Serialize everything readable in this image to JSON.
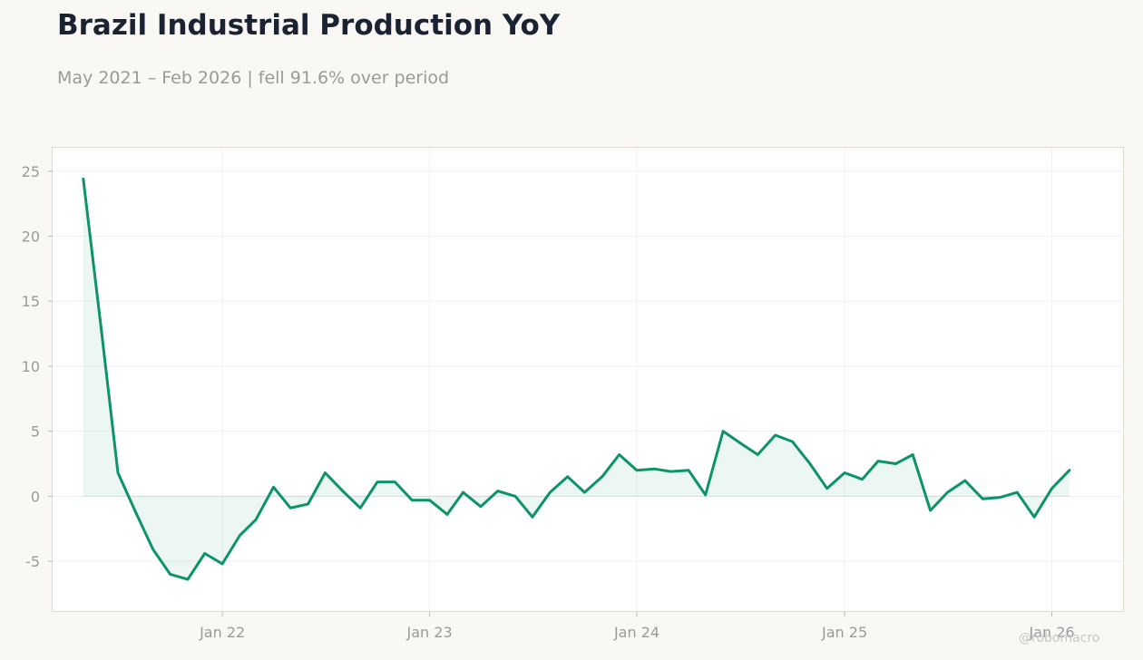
{
  "title": "Brazil Industrial Production YoY",
  "subtitle": "May 2021 – Feb 2026 | fell 91.6% over period",
  "watermark": "@robomacro",
  "colors": {
    "line": "#0d936a",
    "fill": "#0d936a",
    "background": "#f9f8f5",
    "plot_background": "#ffffff",
    "grid": "#eeeeee",
    "title": "#1b2333",
    "muted": "#9a9a9a"
  },
  "chart_data": {
    "type": "area",
    "title": "Brazil Industrial Production YoY",
    "subtitle": "May 2021 – Feb 2026 | fell 91.6% over period",
    "xlabel": "",
    "ylabel": "",
    "ylim": [
      -8.9,
      26.8
    ],
    "xlim": [
      "2021-03-08",
      "2026-05-08"
    ],
    "grid": true,
    "legend": "none",
    "y_ticks": [
      25,
      20,
      15,
      10,
      5,
      0,
      -5
    ],
    "y_tick_labels": [
      "25",
      "20",
      "15",
      "10",
      "5",
      "0",
      "-5"
    ],
    "x_ticks": [
      "2022-01-01",
      "2023-01-01",
      "2024-01-01",
      "2025-01-01",
      "2026-01-01"
    ],
    "x_tick_labels": [
      "Jan 22",
      "Jan 23",
      "Jan 24",
      "Jan 25",
      "Jan 26"
    ],
    "series": [
      {
        "x": [
          "2021-05",
          "2021-06",
          "2021-07",
          "2021-08",
          "2021-09",
          "2021-10",
          "2021-11",
          "2021-12",
          "2022-01",
          "2022-02",
          "2022-03",
          "2022-04",
          "2022-05",
          "2022-06",
          "2022-07",
          "2022-08",
          "2022-09",
          "2022-10",
          "2022-11",
          "2022-12",
          "2023-01",
          "2023-02",
          "2023-03",
          "2023-04",
          "2023-05",
          "2023-06",
          "2023-07",
          "2023-08",
          "2023-09",
          "2023-10",
          "2023-11",
          "2023-12",
          "2024-01",
          "2024-02",
          "2024-03",
          "2024-04",
          "2024-05",
          "2024-06",
          "2024-07",
          "2024-08",
          "2024-09",
          "2024-10",
          "2024-11",
          "2024-12",
          "2025-01",
          "2025-02",
          "2025-03",
          "2025-04",
          "2025-05",
          "2025-06",
          "2025-07",
          "2025-08",
          "2025-09",
          "2025-10",
          "2025-11",
          "2025-12",
          "2026-01",
          "2026-02"
        ],
        "values": [
          24.4,
          13.1,
          1.8,
          -1.2,
          -4.1,
          -6.0,
          -6.4,
          -4.4,
          -5.2,
          -3.0,
          -1.8,
          0.7,
          -0.9,
          -0.6,
          1.8,
          0.4,
          -0.9,
          1.1,
          1.1,
          -0.3,
          -0.3,
          -1.4,
          0.3,
          -0.8,
          0.4,
          0.0,
          -1.6,
          0.3,
          1.5,
          0.3,
          1.5,
          3.2,
          2.0,
          2.1,
          1.9,
          2.0,
          0.1,
          5.0,
          4.1,
          3.2,
          4.7,
          4.2,
          2.5,
          0.6,
          1.8,
          1.3,
          2.7,
          2.5,
          3.2,
          -1.1,
          0.3,
          1.2,
          -0.2,
          -0.1,
          0.3,
          -1.6,
          0.6,
          2.0
        ]
      }
    ]
  }
}
